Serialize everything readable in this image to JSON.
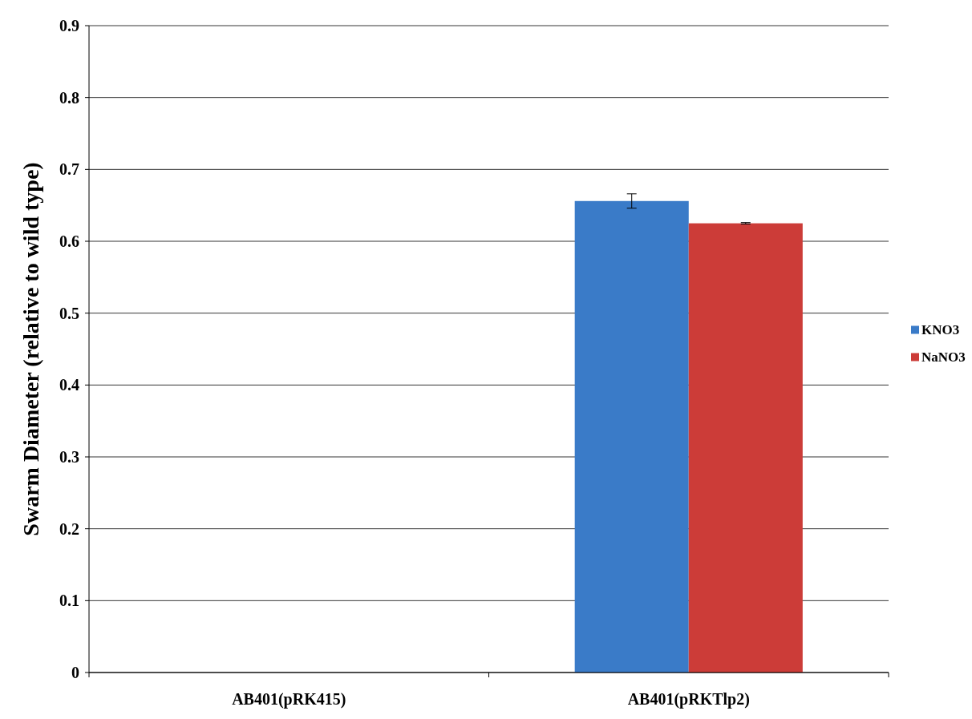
{
  "chart_data": {
    "type": "bar",
    "ylabel": "Swarm Diameter (relative to wild type)",
    "categories": [
      "AB401(pRK415)",
      "AB401(pRKTlp2)"
    ],
    "series": [
      {
        "name": "KNO3",
        "color": "#3a7bc8",
        "values": [
          0,
          0.656
        ],
        "errors": [
          null,
          0.01
        ]
      },
      {
        "name": "NaNO3",
        "color": "#cc3c38",
        "values": [
          0,
          0.625
        ],
        "errors": [
          null,
          0.001
        ]
      }
    ],
    "ylim": [
      0,
      0.9
    ],
    "yticks": [
      0,
      0.1,
      0.2,
      0.3,
      0.4,
      0.5,
      0.6,
      0.7,
      0.8,
      0.9
    ],
    "grid": "y",
    "legend": "right"
  }
}
